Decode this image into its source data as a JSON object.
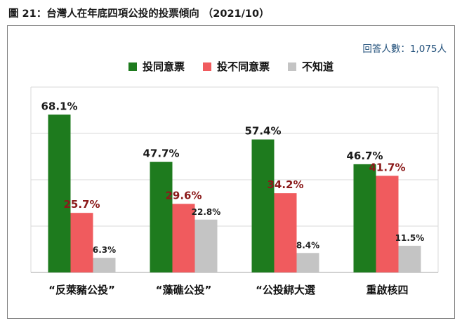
{
  "figure_title": "圖 21：台灣人在年底四項公投的投票傾向 （2021/10）",
  "respondents": "回答人數：1,075人",
  "colors": {
    "agree": "#1e7b1e",
    "disagree": "#f05b5e",
    "unknown": "#c4c4c4",
    "agree_label": "#1a1a1a",
    "disagree_label": "#8b1a1a",
    "unknown_label": "#222222"
  },
  "chart_data": {
    "type": "bar",
    "categories": [
      "“反萊豬公投”",
      "“藻礁公投”",
      "“公投綁大選",
      "重啟核四"
    ],
    "series": [
      {
        "name": "投同意票",
        "values": [
          68.1,
          47.7,
          57.4,
          46.7
        ]
      },
      {
        "name": "投不同意票",
        "values": [
          25.7,
          29.6,
          34.2,
          41.7
        ]
      },
      {
        "name": "不知道",
        "values": [
          6.3,
          22.8,
          8.4,
          11.5
        ]
      }
    ],
    "value_labels": [
      [
        "68.1%",
        "47.7%",
        "57.4%",
        "46.7%"
      ],
      [
        "25.7%",
        "29.6%",
        "34.2%",
        "41.7%"
      ],
      [
        "6.3%",
        "22.8%",
        "8.4%",
        "11.5%"
      ]
    ],
    "ylim": [
      0,
      80
    ],
    "grid": true,
    "legend_position": "top"
  }
}
